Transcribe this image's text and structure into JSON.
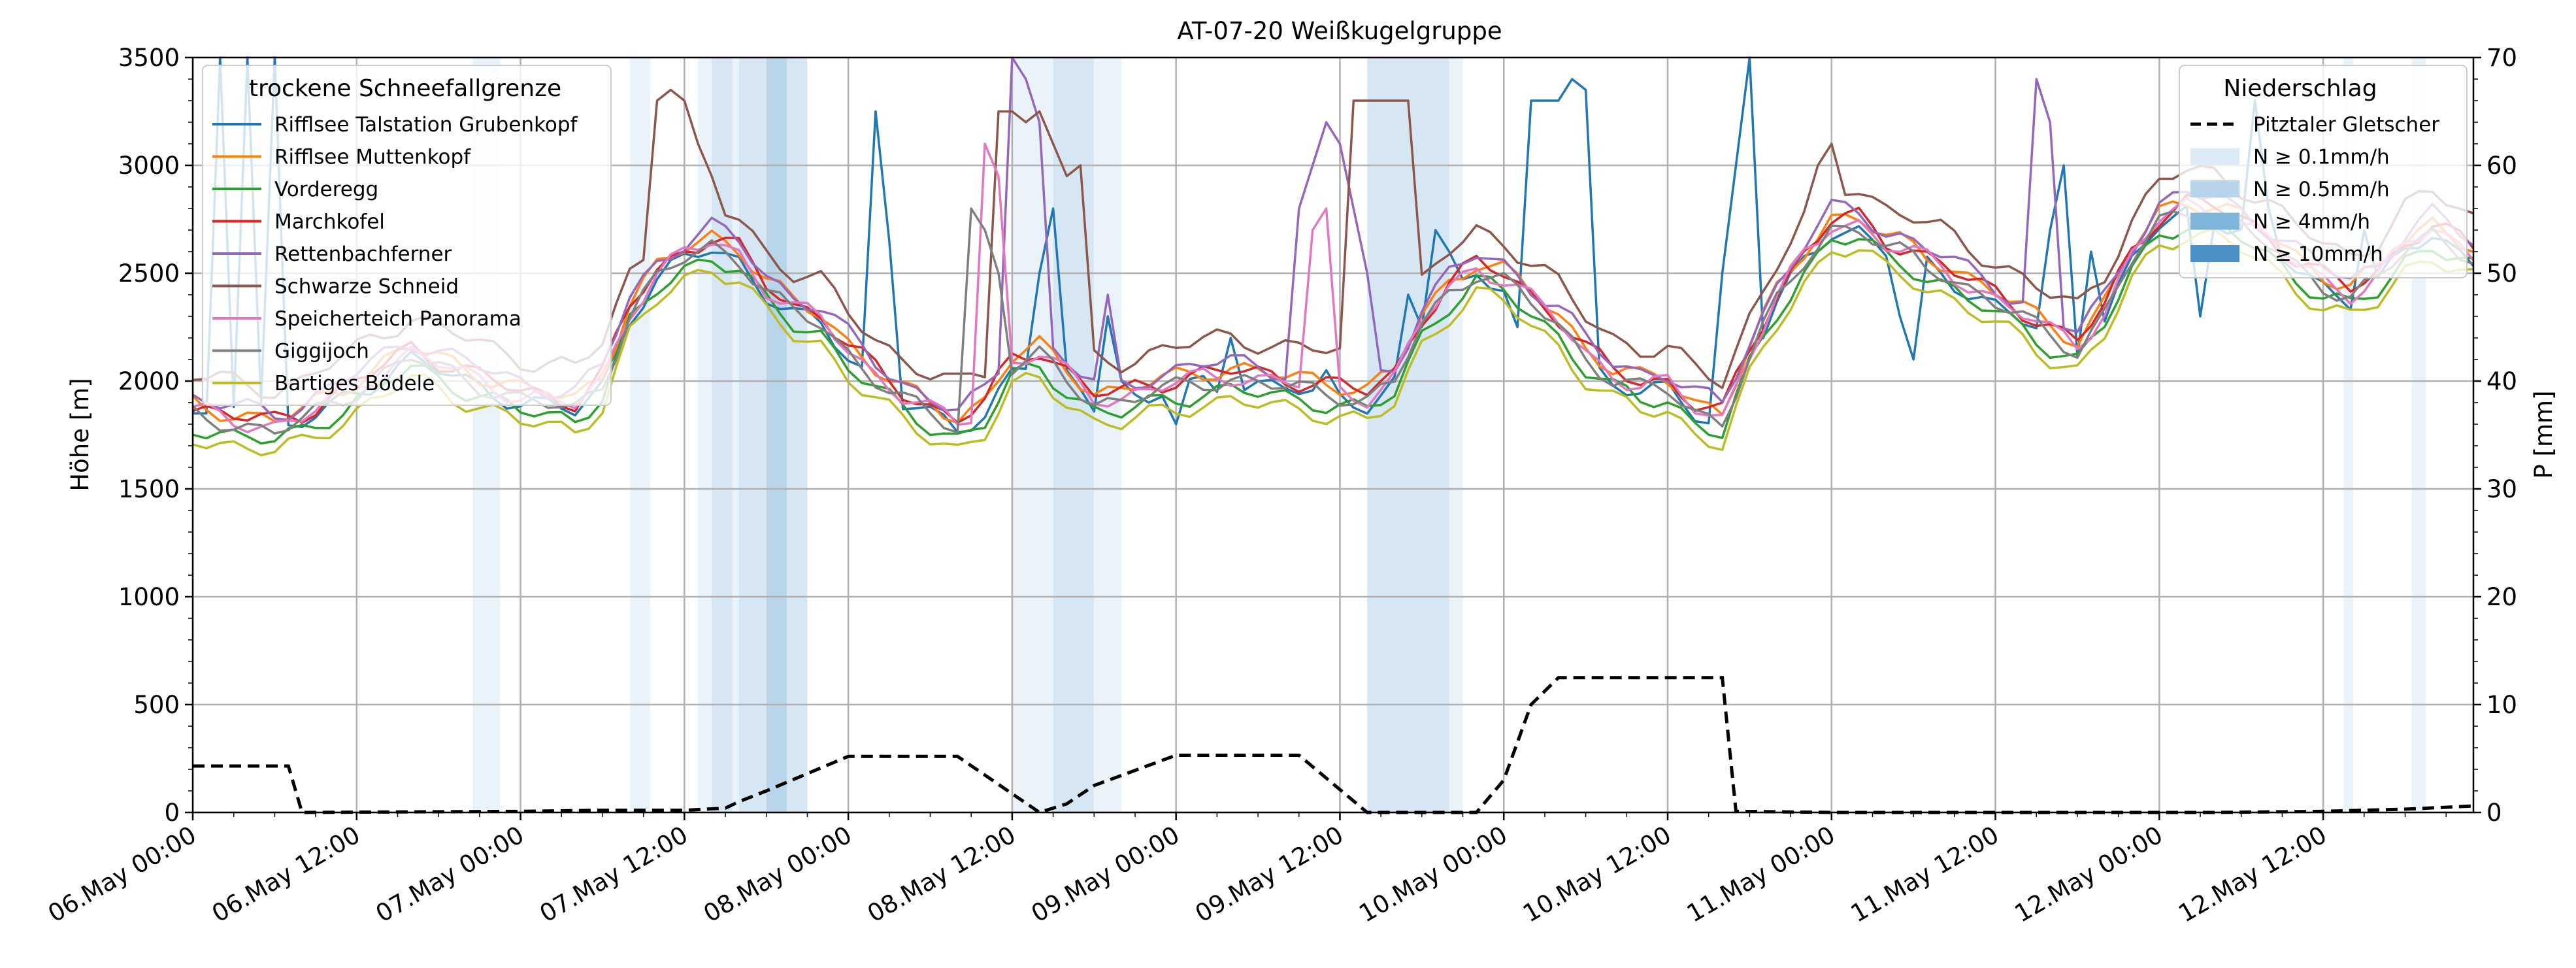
{
  "chart_data": {
    "type": "line",
    "title": "AT-07-20 Weißkugelgruppe",
    "ylabel_left": "Höhe [m]",
    "ylabel_right": "P [mm]",
    "y_left_range": [
      0,
      3500
    ],
    "y_right_range": [
      0,
      70
    ],
    "y_left_ticks": [
      "0",
      "500",
      "1000",
      "1500",
      "2000",
      "2500",
      "3000",
      "3500"
    ],
    "y_right_ticks": [
      "0",
      "10",
      "20",
      "30",
      "40",
      "50",
      "60",
      "70"
    ],
    "x_range_hours": [
      0,
      167
    ],
    "x_tick_labels": [
      "06.May 00:00",
      "06.May 12:00",
      "07.May 00:00",
      "07.May 12:00",
      "08.May 00:00",
      "08.May 12:00",
      "09.May 00:00",
      "09.May 12:00",
      "10.May 00:00",
      "10.May 12:00",
      "11.May 00:00",
      "11.May 12:00",
      "12.May 00:00",
      "12.May 12:00"
    ],
    "grid": true,
    "legend_left": {
      "title": "trockene Schneefallgrenze",
      "placement": "top-left"
    },
    "legend_right": {
      "title": "Niederschlag",
      "placement": "top-right",
      "entries": [
        {
          "label": "Pitztaler Gletscher",
          "style": "dashed"
        },
        {
          "label": "N ≥ 0.1mm/h",
          "color": "#deebf7"
        },
        {
          "label": "N ≥ 0.5mm/h",
          "color": "#b7d4ea"
        },
        {
          "label": "N ≥ 4mm/h",
          "color": "#7fb5da"
        },
        {
          "label": "N ≥ 10mm/h",
          "color": "#4a8fc5"
        }
      ]
    },
    "series": [
      {
        "name": "Rifflsee Talstation Grubenkopf",
        "color": "#1f77b4",
        "offset": 0,
        "spikes": [
          [
            1,
            1850
          ],
          [
            2,
            3500
          ],
          [
            3,
            1880
          ],
          [
            4,
            3500
          ],
          [
            5,
            1900
          ],
          [
            6,
            3500
          ],
          [
            50,
            3250
          ],
          [
            51,
            2650
          ],
          [
            62,
            2500
          ],
          [
            63,
            2800
          ],
          [
            67,
            2300
          ],
          [
            68,
            2000
          ],
          [
            70,
            1900
          ],
          [
            72,
            1800
          ],
          [
            75,
            1950
          ],
          [
            76,
            2200
          ],
          [
            83,
            2050
          ],
          [
            89,
            2400
          ],
          [
            90,
            2250
          ],
          [
            91,
            2700
          ],
          [
            92,
            2600
          ],
          [
            97,
            2250
          ],
          [
            98,
            3300
          ],
          [
            99,
            3300
          ],
          [
            100,
            3300
          ],
          [
            101,
            3400
          ],
          [
            102,
            3350
          ],
          [
            112,
            2500
          ],
          [
            113,
            3000
          ],
          [
            114,
            3500
          ],
          [
            125,
            2300
          ],
          [
            126,
            2100
          ],
          [
            136,
            2700
          ],
          [
            137,
            3000
          ],
          [
            139,
            2600
          ],
          [
            147,
            2300
          ],
          [
            151,
            3300
          ],
          [
            152,
            2800
          ],
          [
            159,
            2700
          ]
        ]
      },
      {
        "name": "Rifflsee Muttenkopf",
        "color": "#ff7f0e",
        "offset": 60,
        "spikes": []
      },
      {
        "name": "Vorderegg",
        "color": "#2ca02c",
        "offset": -40,
        "spikes": []
      },
      {
        "name": "Marchkofel",
        "color": "#d62728",
        "offset": 50,
        "spikes": []
      },
      {
        "name": "Rettenbachferner",
        "color": "#9467bd",
        "offset": 90,
        "spikes": [
          [
            60,
            3500
          ],
          [
            61,
            3400
          ],
          [
            62,
            3200
          ],
          [
            67,
            2400
          ],
          [
            81,
            2800
          ],
          [
            82,
            3000
          ],
          [
            83,
            3200
          ],
          [
            84,
            3100
          ],
          [
            85,
            2800
          ],
          [
            86,
            2500
          ],
          [
            135,
            3400
          ],
          [
            136,
            3200
          ]
        ]
      },
      {
        "name": "Schwarze Schneid",
        "color": "#8c564b",
        "offset": 200,
        "spikes": [
          [
            34,
            3300
          ],
          [
            35,
            3350
          ],
          [
            36,
            3300
          ],
          [
            37,
            3100
          ],
          [
            38,
            2950
          ],
          [
            59,
            3250
          ],
          [
            60,
            3250
          ],
          [
            61,
            3200
          ],
          [
            62,
            3250
          ],
          [
            63,
            3100
          ],
          [
            64,
            2950
          ],
          [
            65,
            3000
          ],
          [
            85,
            3300
          ],
          [
            86,
            3300
          ],
          [
            87,
            3300
          ],
          [
            88,
            3300
          ],
          [
            89,
            3300
          ],
          [
            119,
            3000
          ],
          [
            120,
            3100
          ]
        ]
      },
      {
        "name": "Speicherteich Panorama",
        "color": "#e377c2",
        "offset": 30,
        "spikes": [
          [
            58,
            3100
          ],
          [
            59,
            2950
          ],
          [
            82,
            2700
          ],
          [
            83,
            2800
          ]
        ]
      },
      {
        "name": "Giggijoch",
        "color": "#7f7f7f",
        "offset": 10,
        "spikes": [
          [
            57,
            2800
          ],
          [
            58,
            2700
          ],
          [
            59,
            2500
          ]
        ]
      },
      {
        "name": "Bartiges Bödele",
        "color": "#bcbd22",
        "offset": -90,
        "spikes": []
      }
    ],
    "base_profile_hours": [
      0,
      4,
      6,
      8,
      12,
      16,
      20,
      24,
      28,
      30,
      32,
      34,
      36,
      38,
      40,
      42,
      44,
      46,
      48,
      50,
      52,
      54,
      56,
      58,
      60,
      62,
      64,
      66,
      68,
      70,
      72,
      74,
      76,
      78,
      80,
      82,
      84,
      86,
      88,
      90,
      92,
      94,
      96,
      98,
      100,
      102,
      104,
      106,
      108,
      110,
      112,
      114,
      116,
      118,
      120,
      122,
      124,
      126,
      128,
      130,
      132,
      134,
      136,
      138,
      140,
      142,
      144,
      146,
      148,
      150,
      152,
      154,
      156,
      158,
      160,
      162,
      164,
      166,
      167
    ],
    "base_profile_values": [
      1830,
      1780,
      1760,
      1800,
      1950,
      2100,
      2000,
      1900,
      1860,
      1980,
      2300,
      2460,
      2560,
      2620,
      2560,
      2400,
      2300,
      2260,
      2120,
      2000,
      1900,
      1830,
      1780,
      1850,
      2050,
      2100,
      2000,
      1900,
      1890,
      1930,
      1960,
      1990,
      2000,
      1980,
      1960,
      1950,
      1930,
      1900,
      1980,
      2250,
      2400,
      2500,
      2450,
      2350,
      2250,
      2100,
      2000,
      1950,
      1950,
      1850,
      1800,
      2100,
      2350,
      2550,
      2700,
      2700,
      2600,
      2560,
      2500,
      2420,
      2350,
      2280,
      2200,
      2140,
      2300,
      2550,
      2720,
      2780,
      2760,
      2700,
      2620,
      2520,
      2440,
      2380,
      2450,
      2600,
      2680,
      2600,
      2560
    ],
    "precipitation_mm": {
      "name": "Pitztaler Gletscher",
      "hours": [
        0,
        7,
        8,
        24,
        30,
        36,
        39,
        40,
        42,
        48,
        55,
        56,
        62,
        64,
        66,
        72,
        80,
        81,
        86,
        94,
        96,
        98,
        100,
        102,
        103,
        112,
        113,
        120,
        148,
        156,
        162,
        167
      ],
      "values": [
        4.3,
        4.3,
        0,
        0.1,
        0.2,
        0.2,
        0.4,
        1.0,
        2.0,
        5.2,
        5.2,
        5.2,
        0,
        0.8,
        2.5,
        5.3,
        5.3,
        5.3,
        0,
        0,
        3.0,
        10.0,
        12.5,
        12.5,
        12.5,
        12.5,
        0.1,
        0,
        0,
        0.1,
        0.3,
        0.6
      ]
    },
    "precip_bands": [
      {
        "from": 20.5,
        "to": 22.5,
        "level": 1
      },
      {
        "from": 32,
        "to": 33.5,
        "level": 1
      },
      {
        "from": 37,
        "to": 38,
        "level": 1
      },
      {
        "from": 38,
        "to": 39.5,
        "level": 2
      },
      {
        "from": 39.5,
        "to": 40,
        "level": 1
      },
      {
        "from": 40,
        "to": 42,
        "level": 2
      },
      {
        "from": 42,
        "to": 43.5,
        "level": 3
      },
      {
        "from": 43.5,
        "to": 45,
        "level": 2
      },
      {
        "from": 60,
        "to": 63,
        "level": 1
      },
      {
        "from": 63,
        "to": 66,
        "level": 2
      },
      {
        "from": 66,
        "to": 68,
        "level": 1
      },
      {
        "from": 86,
        "to": 92,
        "level": 2
      },
      {
        "from": 92,
        "to": 93,
        "level": 1
      },
      {
        "from": 157.5,
        "to": 158.2,
        "level": 1
      },
      {
        "from": 162.5,
        "to": 163.5,
        "level": 1
      }
    ]
  }
}
